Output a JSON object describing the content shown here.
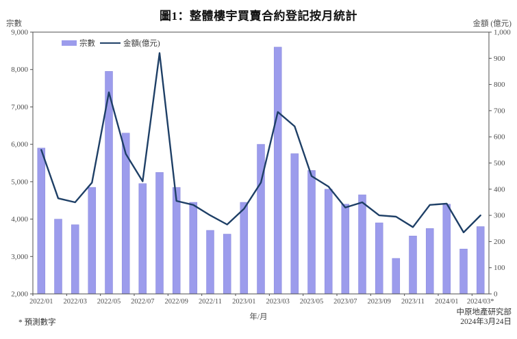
{
  "page": {
    "title": "圖1：整體樓宇買賣合約登記按月統計",
    "left_axis_corner_label": "宗數",
    "right_axis_corner_label": "金額 (億元)",
    "x_axis_title": "年/月",
    "footnote": "* 預測數字",
    "source_line1": "中原地產研究部",
    "source_line2": "2024年3月24日"
  },
  "colors": {
    "bar_fill": "#9c9cec",
    "bar_edge": "#8787d9",
    "line": "#1e3f66",
    "frame": "#4d4d4d",
    "tick_text": "#4d4d4d"
  },
  "chart_data": {
    "type": "bar",
    "subtype": "bar+line combo, dual axis",
    "title": "圖1：整體樓宇買賣合約登記按月統計",
    "xlabel": "年/月",
    "ylabel_left": "宗數",
    "ylabel_right": "金額 (億元)",
    "grid": false,
    "legend_position": "top-left inside plot",
    "categories": [
      "2022/01",
      "2022/02",
      "2022/03",
      "2022/04",
      "2022/05",
      "2022/06",
      "2022/07",
      "2022/08",
      "2022/09",
      "2022/10",
      "2022/11",
      "2022/12",
      "2023/01",
      "2023/02",
      "2023/03",
      "2023/04",
      "2023/05",
      "2023/06",
      "2023/07",
      "2023/08",
      "2023/09",
      "2023/10",
      "2023/11",
      "2023/12",
      "2024/01",
      "2024/02",
      "2024/03"
    ],
    "x_tick_labels": [
      "2022/01",
      "2022/03",
      "2022/05",
      "2022/07",
      "2022/09",
      "2022/11",
      "2023/01",
      "2023/03",
      "2023/05",
      "2023/07",
      "2023/09",
      "2023/11",
      "2024/01",
      "2024/03*"
    ],
    "series": [
      {
        "name": "宗數",
        "type": "bar",
        "axis": "left",
        "values": [
          5900,
          4000,
          3850,
          4850,
          7950,
          6300,
          4950,
          5250,
          4850,
          4450,
          3700,
          3600,
          4450,
          6000,
          8600,
          5750,
          5300,
          4800,
          4400,
          4650,
          3900,
          2950,
          3550,
          3750,
          4400,
          3200,
          3800
        ]
      },
      {
        "name": "金額(億元)",
        "type": "line",
        "axis": "right",
        "values": [
          550,
          365,
          350,
          425,
          770,
          535,
          430,
          920,
          355,
          340,
          300,
          265,
          325,
          425,
          695,
          640,
          450,
          410,
          330,
          350,
          300,
          295,
          255,
          340,
          345,
          235,
          300
        ]
      }
    ],
    "left_axis": {
      "min": 2000,
      "max": 9000,
      "step": 1000,
      "tick_labels": [
        "9,000",
        "8,000",
        "7,000",
        "6,000",
        "5,000",
        "4,000",
        "3,000",
        "2,000"
      ]
    },
    "right_axis": {
      "min": 0,
      "max": 1000,
      "step": 100,
      "tick_labels": [
        "1,000",
        "900",
        "800",
        "700",
        "600",
        "500",
        "400",
        "300",
        "200",
        "100",
        "0"
      ]
    }
  }
}
